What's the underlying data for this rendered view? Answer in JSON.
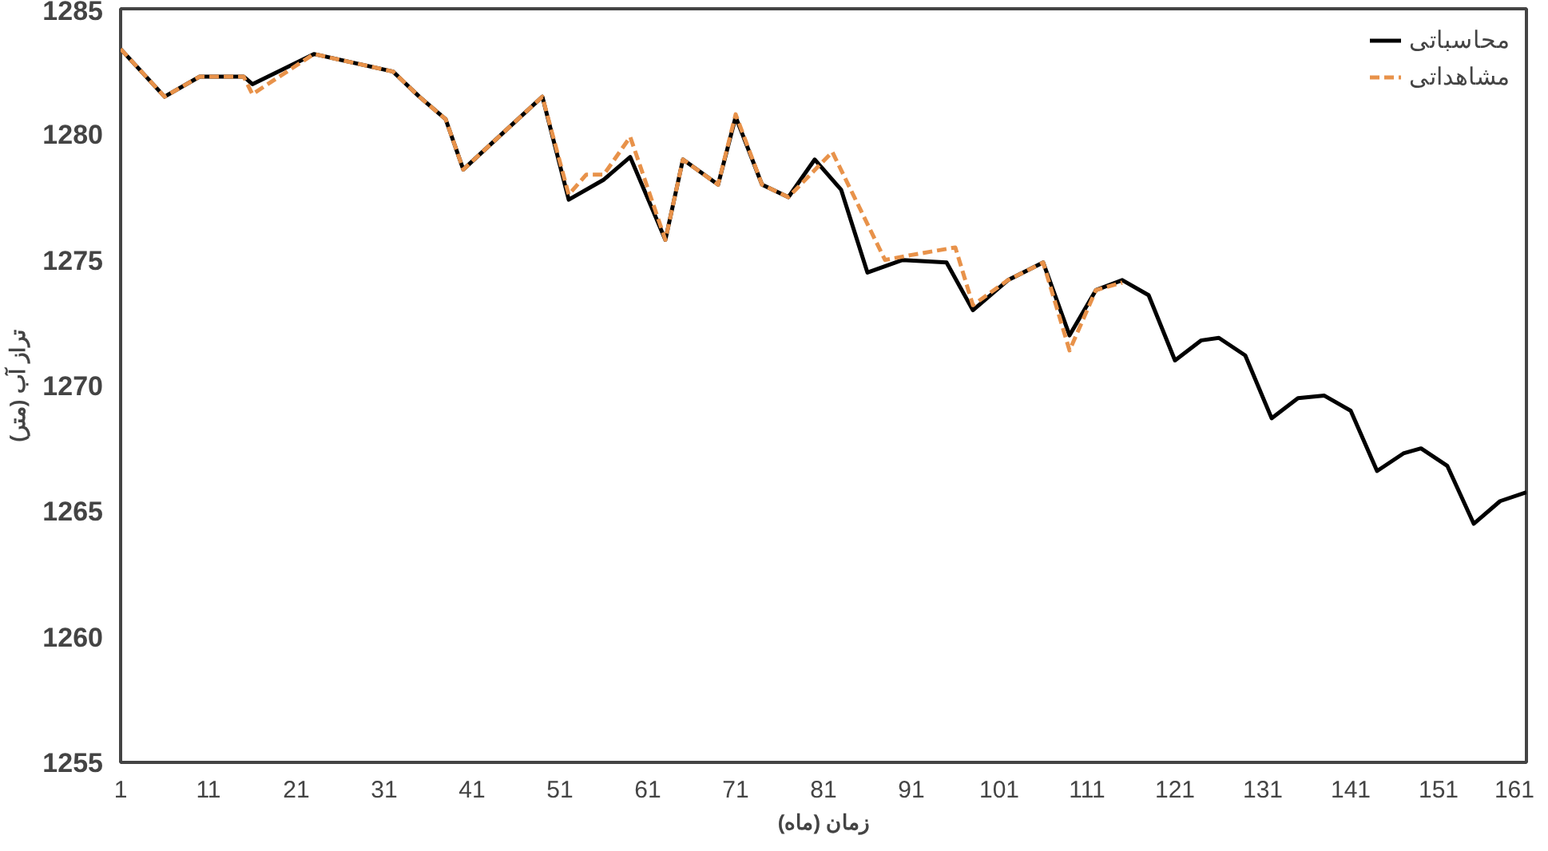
{
  "chart_data": {
    "type": "line",
    "xlabel": "زمان (ماه)",
    "ylabel": "تراز آب (متر)",
    "xlim": [
      1,
      161
    ],
    "ylim": [
      1255,
      1285
    ],
    "xticks": [
      1,
      11,
      21,
      31,
      41,
      51,
      61,
      71,
      81,
      91,
      101,
      111,
      121,
      131,
      141,
      151,
      161
    ],
    "yticks": [
      1255,
      1260,
      1265,
      1270,
      1275,
      1280,
      1285
    ],
    "grid": false,
    "legend": "top right",
    "series": [
      {
        "name": "محاسباتی",
        "color": "#000000",
        "line_style": "solid",
        "x": [
          1,
          6,
          10,
          15,
          16,
          23,
          32,
          35,
          38,
          40,
          49,
          52,
          56,
          59,
          63,
          65,
          69,
          71,
          74,
          77,
          80,
          83,
          86,
          90,
          95,
          98,
          102,
          106,
          109,
          112,
          115,
          118,
          121,
          124,
          126,
          129,
          132,
          135,
          138,
          141,
          144,
          147,
          149,
          152,
          155,
          158,
          161
        ],
        "values": [
          1283.4,
          1281.5,
          1282.3,
          1282.3,
          1282.0,
          1283.2,
          1282.5,
          1281.5,
          1280.6,
          1278.6,
          1281.5,
          1277.4,
          1278.2,
          1279.1,
          1275.8,
          1279.0,
          1278.0,
          1280.7,
          1278.0,
          1277.5,
          1279.0,
          1277.8,
          1274.5,
          1275.0,
          1274.9,
          1273.0,
          1274.2,
          1274.9,
          1272.0,
          1273.8,
          1274.2,
          1273.6,
          1271.0,
          1271.8,
          1271.9,
          1271.2,
          1268.7,
          1269.5,
          1269.6,
          1269.0,
          1266.6,
          1267.3,
          1267.5,
          1266.8,
          1264.5,
          1265.4,
          1265.75
        ]
      },
      {
        "name": "مشاهداتی",
        "color": "#e8924a",
        "line_style": "dashed",
        "x": [
          1,
          6,
          10,
          15,
          16,
          23,
          32,
          35,
          38,
          40,
          49,
          52,
          54,
          56,
          59,
          63,
          65,
          69,
          71,
          74,
          77,
          82,
          88,
          91,
          96,
          98,
          102,
          106,
          109,
          112,
          115
        ],
        "values": [
          1283.4,
          1281.5,
          1282.3,
          1282.3,
          1281.6,
          1283.2,
          1282.5,
          1281.5,
          1280.6,
          1278.6,
          1281.5,
          1277.6,
          1278.4,
          1278.4,
          1279.9,
          1275.8,
          1279.0,
          1278.0,
          1280.8,
          1278.0,
          1277.5,
          1279.3,
          1275.0,
          1275.2,
          1275.5,
          1273.2,
          1274.2,
          1274.9,
          1271.4,
          1273.8,
          1274.1
        ]
      }
    ]
  }
}
